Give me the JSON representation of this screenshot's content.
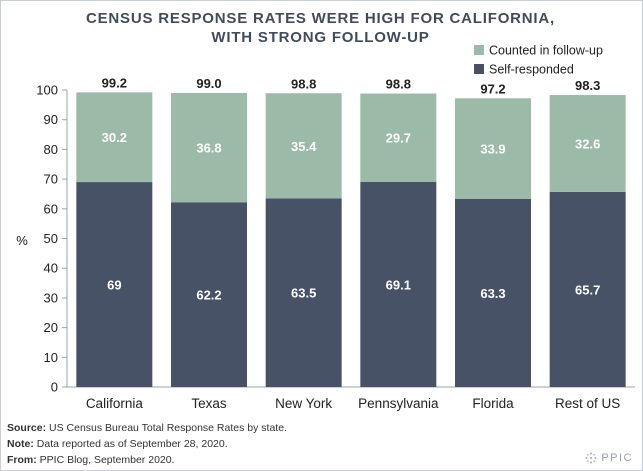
{
  "chart_data": {
    "type": "bar",
    "stacked": true,
    "title": [
      "CENSUS RESPONSE RATES WERE HIGH FOR CALIFORNIA,",
      "WITH STRONG FOLLOW-UP"
    ],
    "ylabel": "%",
    "ylim": [
      0,
      100
    ],
    "yticks": [
      0,
      10,
      20,
      30,
      40,
      50,
      60,
      70,
      80,
      90,
      100
    ],
    "categories": [
      "California",
      "Texas",
      "New York",
      "Pennsylvania",
      "Florida",
      "Rest of US"
    ],
    "series": [
      {
        "name": "Self-responded",
        "color": "#475266",
        "values": [
          69,
          62.2,
          63.5,
          69.1,
          63.3,
          65.7
        ],
        "labels": [
          "69",
          "62.2",
          "63.5",
          "69.1",
          "63.3",
          "65.7"
        ]
      },
      {
        "name": "Counted in follow-up",
        "color": "#9bbaa7",
        "values": [
          30.2,
          36.8,
          35.4,
          29.7,
          33.9,
          32.6
        ],
        "labels": [
          "30.2",
          "36.8",
          "35.4",
          "29.7",
          "33.9",
          "32.6"
        ]
      }
    ],
    "totals": [
      "99.2",
      "99.0",
      "98.8",
      "98.8",
      "97.2",
      "98.3"
    ],
    "legend_position": "top-right",
    "grid": false
  },
  "notes": {
    "source_label": "Source:",
    "source_text": "US Census Bureau Total Response Rates by state.",
    "note_label": "Note:",
    "note_text": "Data reported as of September 28, 2020.",
    "from_label": "From:",
    "from_text": "PPIC Blog, September 2020."
  },
  "logo": {
    "text": "PPIC",
    "icon": "ppic-logo-icon"
  }
}
